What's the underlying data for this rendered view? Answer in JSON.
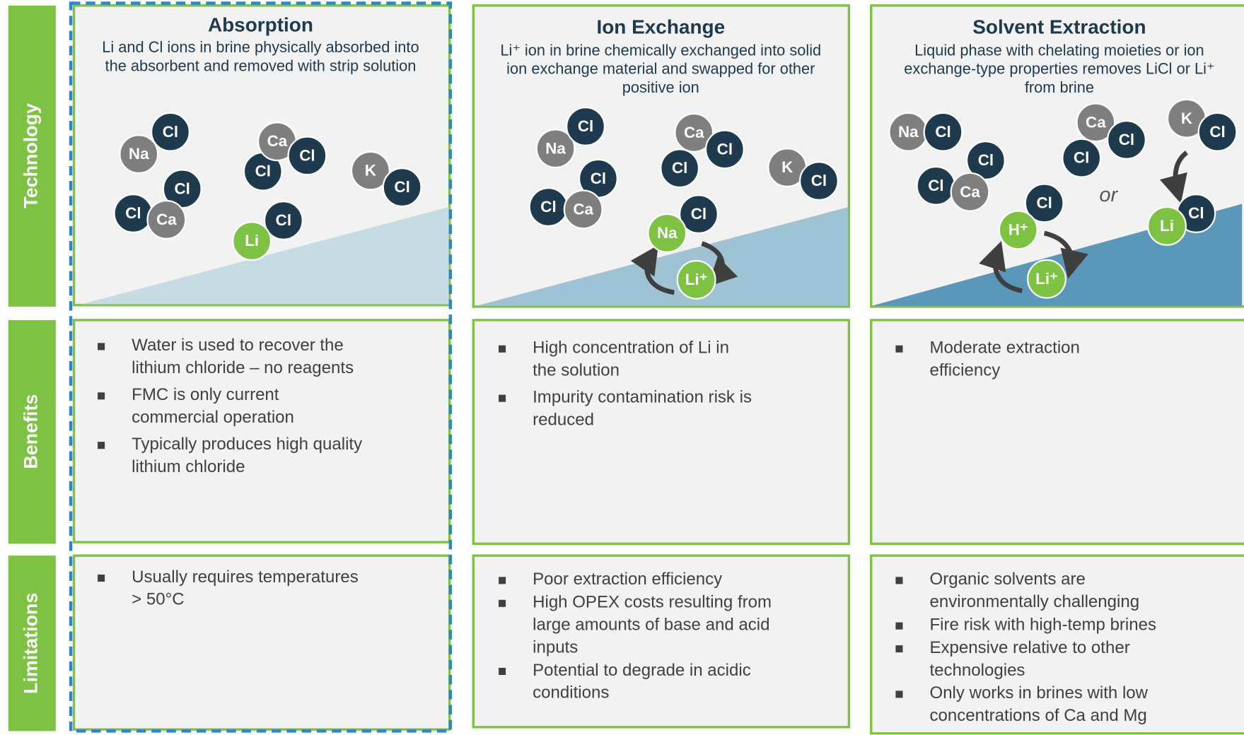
{
  "row_labels": [
    "Technology",
    "Benefits",
    "Limitations"
  ],
  "or_label": "or",
  "columns": [
    {
      "title": "Absorption",
      "description": [
        "Li and Cl ions in brine physically absorbed into",
        "the absorbent and removed with strip solution"
      ],
      "ions": [
        {
          "label": "Na",
          "color": "#7f7f7f"
        },
        {
          "label": "Cl",
          "color": "#1d3a4f"
        },
        {
          "label": "Cl",
          "color": "#1d3a4f"
        },
        {
          "label": "Ca",
          "color": "#7f7f7f"
        },
        {
          "label": "Cl",
          "color": "#1d3a4f"
        },
        {
          "label": "K",
          "color": "#7f7f7f"
        },
        {
          "label": "Cl",
          "color": "#1d3a4f"
        },
        {
          "label": "Cl",
          "color": "#1d3a4f"
        },
        {
          "label": "Cl",
          "color": "#1d3a4f"
        },
        {
          "label": "Ca",
          "color": "#7f7f7f"
        },
        {
          "label": "Cl",
          "color": "#1d3a4f"
        },
        {
          "label": "Li",
          "color": "#7dc242"
        }
      ],
      "benefits": [
        [
          "Water is used to recover the",
          "lithium chloride – no reagents"
        ],
        [
          "FMC is only current",
          "commercial operation"
        ],
        [
          "Typically produces high quality",
          "lithium chloride"
        ]
      ],
      "limitations": [
        [
          "Usually requires temperatures",
          "> 50°C"
        ]
      ]
    },
    {
      "title": "Ion Exchange",
      "description": [
        "Li⁺ ion in brine chemically exchanged into solid",
        "ion exchange material and swapped for other",
        "positive ion"
      ],
      "ions": [
        {
          "label": "Na",
          "color": "#7f7f7f"
        },
        {
          "label": "Cl",
          "color": "#1d3a4f"
        },
        {
          "label": "Cl",
          "color": "#1d3a4f"
        },
        {
          "label": "Cl",
          "color": "#1d3a4f"
        },
        {
          "label": "Ca",
          "color": "#7f7f7f"
        },
        {
          "label": "Ca",
          "color": "#7f7f7f"
        },
        {
          "label": "Cl",
          "color": "#1d3a4f"
        },
        {
          "label": "Cl",
          "color": "#1d3a4f"
        },
        {
          "label": "K",
          "color": "#7f7f7f"
        },
        {
          "label": "Cl",
          "color": "#1d3a4f"
        },
        {
          "label": "Cl",
          "color": "#1d3a4f"
        },
        {
          "label": "Na",
          "color": "#7dc242"
        },
        {
          "label": "Li⁺",
          "color": "#7dc242"
        }
      ],
      "benefits": [
        [
          "High concentration of Li in",
          "the solution"
        ],
        [
          "Impurity contamination risk is",
          "reduced"
        ]
      ],
      "limitations": [
        [
          "Poor extraction efficiency"
        ],
        [
          "High OPEX costs resulting from",
          "large amounts of base and acid",
          "inputs"
        ],
        [
          "Potential to degrade in acidic",
          "conditions"
        ]
      ]
    },
    {
      "title": "Solvent Extraction",
      "description": [
        "Liquid phase with chelating moieties or ion",
        "exchange-type properties removes LiCl or Li⁺",
        "from brine"
      ],
      "ions": [
        {
          "label": "Na",
          "color": "#7f7f7f"
        },
        {
          "label": "Cl",
          "color": "#1d3a4f"
        },
        {
          "label": "Cl",
          "color": "#1d3a4f"
        },
        {
          "label": "Cl",
          "color": "#1d3a4f"
        },
        {
          "label": "Ca",
          "color": "#7f7f7f"
        },
        {
          "label": "Ca",
          "color": "#7f7f7f"
        },
        {
          "label": "Cl",
          "color": "#1d3a4f"
        },
        {
          "label": "Cl",
          "color": "#1d3a4f"
        },
        {
          "label": "K",
          "color": "#7f7f7f"
        },
        {
          "label": "Cl",
          "color": "#1d3a4f"
        },
        {
          "label": "Cl",
          "color": "#1d3a4f"
        },
        {
          "label": "H⁺",
          "color": "#7dc242"
        },
        {
          "label": "Li⁺",
          "color": "#7dc242"
        },
        {
          "label": "Cl",
          "color": "#1d3a4f"
        },
        {
          "label": "Li",
          "color": "#7dc242"
        }
      ],
      "benefits": [
        [
          "Moderate extraction",
          "efficiency"
        ]
      ],
      "limitations": [
        [
          "Organic solvents are",
          "environmentally challenging"
        ],
        [
          "Fire risk with high-temp brines"
        ],
        [
          "Expensive relative to other",
          "technologies"
        ],
        [
          "Only works in brines with low",
          "concentrations of Ca and Mg"
        ]
      ]
    }
  ]
}
